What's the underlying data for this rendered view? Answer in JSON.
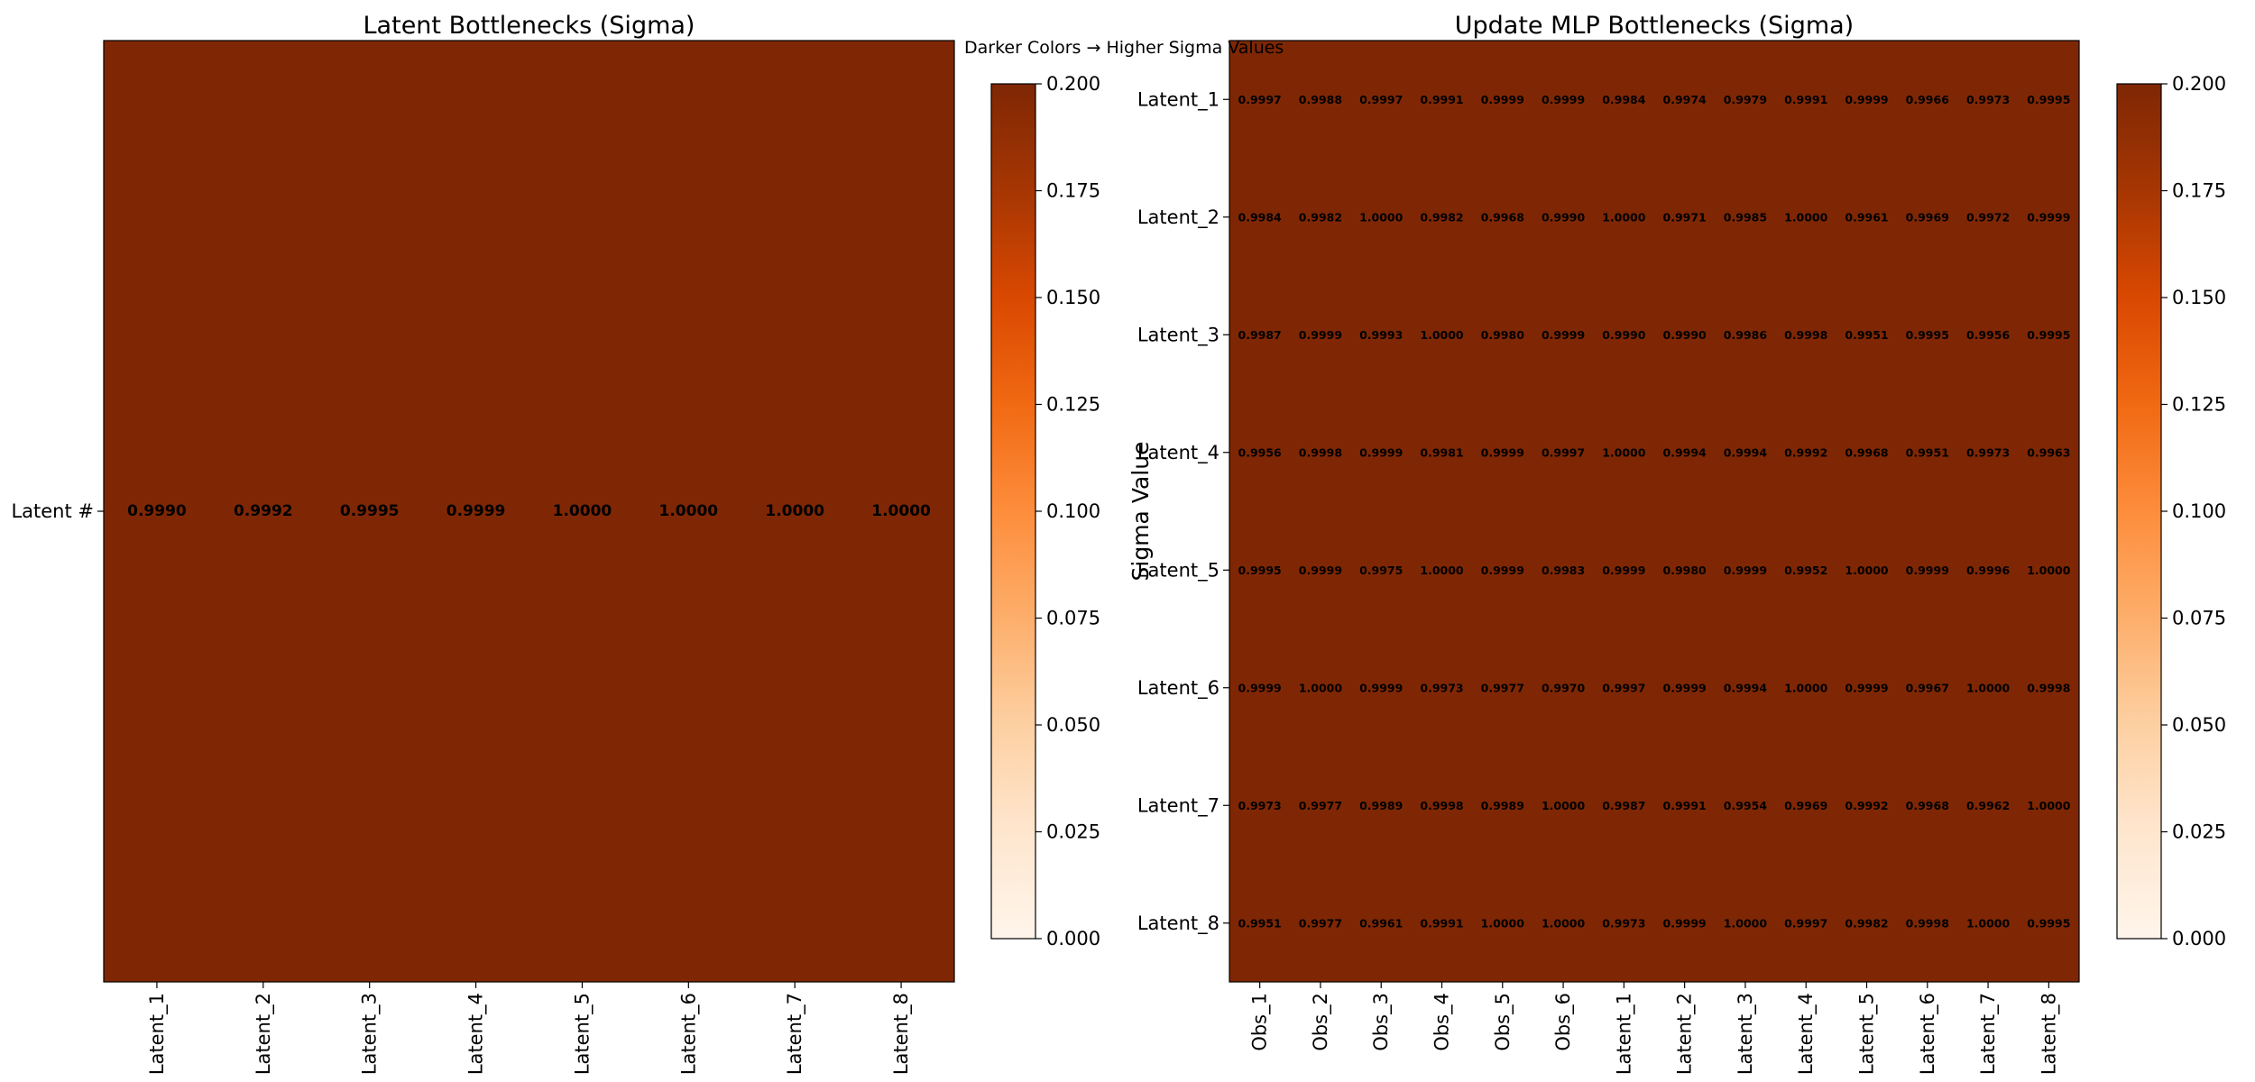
{
  "annotation": "Darker Colors → Higher Sigma Values",
  "colormap": [
    "#fff5eb",
    "#fee6ce",
    "#fdd0a2",
    "#fdae6b",
    "#fd8d3c",
    "#f16913",
    "#d94801",
    "#a63603",
    "#7f2704"
  ],
  "chart_data": [
    {
      "type": "heatmap",
      "title": "Latent Bottlenecks (Sigma)",
      "x": [
        "Latent_1",
        "Latent_2",
        "Latent_3",
        "Latent_4",
        "Latent_5",
        "Latent_6",
        "Latent_7",
        "Latent_8"
      ],
      "y": [
        "Latent #"
      ],
      "values": [
        [
          0.999,
          0.9992,
          0.9995,
          0.9999,
          1.0,
          1.0,
          1.0,
          1.0
        ]
      ],
      "colorbar": {
        "label": "Sigma Value",
        "range": [
          0.0,
          0.2
        ],
        "ticks": [
          "0.000",
          "0.025",
          "0.050",
          "0.075",
          "0.100",
          "0.125",
          "0.150",
          "0.175",
          "0.200"
        ]
      }
    },
    {
      "type": "heatmap",
      "title": "Update MLP Bottlenecks (Sigma)",
      "x": [
        "Obs_1",
        "Obs_2",
        "Obs_3",
        "Obs_4",
        "Obs_5",
        "Obs_6",
        "Latent_1",
        "Latent_2",
        "Latent_3",
        "Latent_4",
        "Latent_5",
        "Latent_6",
        "Latent_7",
        "Latent_8"
      ],
      "y": [
        "Latent_1",
        "Latent_2",
        "Latent_3",
        "Latent_4",
        "Latent_5",
        "Latent_6",
        "Latent_7",
        "Latent_8"
      ],
      "values": [
        [
          0.9997,
          0.9988,
          0.9997,
          0.9991,
          0.9999,
          0.9999,
          0.9984,
          0.9974,
          0.9979,
          0.9991,
          0.9999,
          0.9966,
          0.9973,
          0.9995
        ],
        [
          0.9984,
          0.9982,
          1.0,
          0.9982,
          0.9968,
          0.999,
          1.0,
          0.9971,
          0.9985,
          1.0,
          0.9961,
          0.9969,
          0.9972,
          0.9999
        ],
        [
          0.9987,
          0.9999,
          0.9993,
          1.0,
          0.998,
          0.9999,
          0.999,
          0.999,
          0.9986,
          0.9998,
          0.9951,
          0.9995,
          0.9956,
          0.9995
        ],
        [
          0.9956,
          0.9998,
          0.9999,
          0.9981,
          0.9999,
          0.9997,
          1.0,
          0.9994,
          0.9994,
          0.9992,
          0.9968,
          0.9951,
          0.9973,
          0.9963
        ],
        [
          0.9995,
          0.9999,
          0.9975,
          1.0,
          0.9999,
          0.9983,
          0.9999,
          0.998,
          0.9999,
          0.9952,
          1.0,
          0.9999,
          0.9996,
          1.0
        ],
        [
          0.9999,
          1.0,
          0.9999,
          0.9973,
          0.9977,
          0.997,
          0.9997,
          0.9999,
          0.9994,
          1.0,
          0.9999,
          0.9967,
          1.0,
          0.9998
        ],
        [
          0.9973,
          0.9977,
          0.9989,
          0.9998,
          0.9989,
          1.0,
          0.9987,
          0.9991,
          0.9954,
          0.9969,
          0.9992,
          0.9968,
          0.9962,
          1.0
        ],
        [
          0.9951,
          0.9977,
          0.9961,
          0.9991,
          1.0,
          1.0,
          0.9973,
          0.9999,
          1.0,
          0.9997,
          0.9982,
          0.9998,
          1.0,
          0.9995
        ]
      ],
      "colorbar": {
        "label": "Sigma Value",
        "range": [
          0.0,
          0.2
        ],
        "ticks": [
          "0.000",
          "0.025",
          "0.050",
          "0.075",
          "0.100",
          "0.125",
          "0.150",
          "0.175",
          "0.200"
        ]
      }
    }
  ]
}
